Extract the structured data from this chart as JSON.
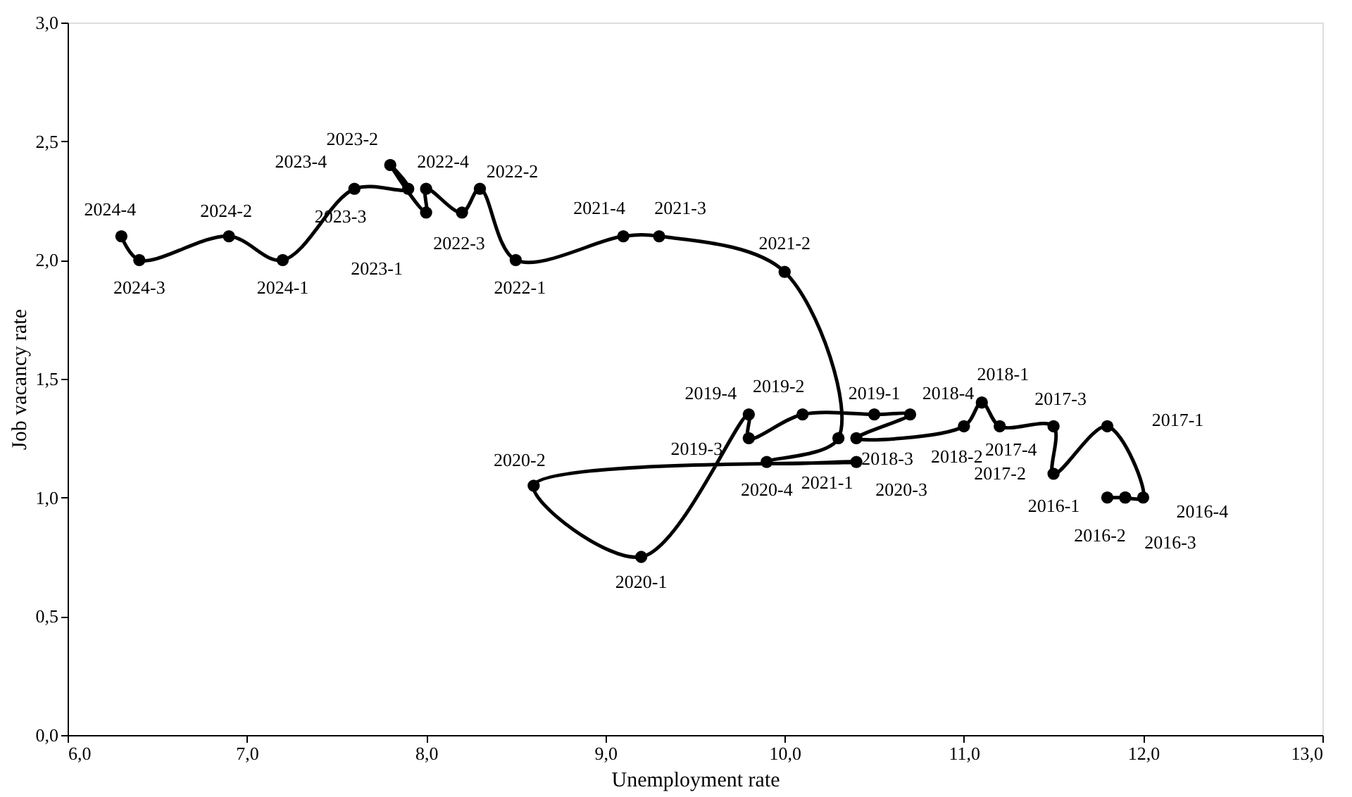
{
  "chart_data": {
    "type": "line",
    "xlabel": "Unemployment rate",
    "ylabel": "Job vacancy rate",
    "xlim": [
      6,
      13
    ],
    "ylim": [
      0,
      3
    ],
    "xticks": [
      {
        "value": 6,
        "label": "6,0"
      },
      {
        "value": 7,
        "label": "7,0"
      },
      {
        "value": 8,
        "label": "8,0"
      },
      {
        "value": 9,
        "label": "9,0"
      },
      {
        "value": 10,
        "label": "10,0"
      },
      {
        "value": 11,
        "label": "11,0"
      },
      {
        "value": 12,
        "label": "12,0"
      },
      {
        "value": 13,
        "label": "13,0"
      }
    ],
    "yticks": [
      {
        "value": 0,
        "label": "0,0"
      },
      {
        "value": 0.5,
        "label": "0,5"
      },
      {
        "value": 1,
        "label": "1,0"
      },
      {
        "value": 1.5,
        "label": "1,5"
      },
      {
        "value": 2,
        "label": "2,0"
      },
      {
        "value": 2.5,
        "label": "2,5"
      },
      {
        "value": 3,
        "label": "3,0"
      }
    ],
    "grid": false,
    "marker": "circle",
    "line_style": "solid",
    "series": [
      {
        "color": "#000000",
        "x": [
          11.8,
          11.9,
          11.9,
          12.0,
          11.8,
          11.5,
          11.5,
          11.2,
          11.1,
          11.0,
          10.4,
          10.7,
          10.5,
          10.1,
          9.8,
          9.8,
          9.2,
          8.6,
          10.4,
          9.9,
          10.3,
          10.0,
          9.3,
          9.1,
          8.5,
          8.3,
          8.2,
          8.0,
          8.0,
          7.8,
          7.9,
          7.6,
          7.2,
          6.9,
          6.4,
          6.3
        ],
        "values": [
          1.0,
          1.0,
          1.0,
          1.0,
          1.3,
          1.1,
          1.3,
          1.3,
          1.4,
          1.3,
          1.25,
          1.35,
          1.35,
          1.35,
          1.25,
          1.35,
          0.75,
          1.05,
          1.15,
          1.15,
          1.25,
          1.95,
          2.1,
          2.1,
          2.0,
          2.3,
          2.2,
          2.3,
          2.2,
          2.4,
          2.3,
          2.3,
          2.0,
          2.1,
          2.0,
          2.1
        ]
      }
    ],
    "annotations": [
      {
        "text": "2016-1",
        "x": 11.8,
        "y": 1.0
      },
      {
        "text": "2016-2",
        "x": 11.9,
        "y": 1.0
      },
      {
        "text": "2016-3",
        "x": 11.9,
        "y": 1.0
      },
      {
        "text": "2016-4",
        "x": 12.0,
        "y": 1.0
      },
      {
        "text": "2017-1",
        "x": 11.8,
        "y": 1.3
      },
      {
        "text": "2017-2",
        "x": 11.5,
        "y": 1.1
      },
      {
        "text": "2017-3",
        "x": 11.5,
        "y": 1.3
      },
      {
        "text": "2017-4",
        "x": 11.2,
        "y": 1.3
      },
      {
        "text": "2018-1",
        "x": 11.1,
        "y": 1.4
      },
      {
        "text": "2018-2",
        "x": 11.0,
        "y": 1.3
      },
      {
        "text": "2018-3",
        "x": 10.4,
        "y": 1.25
      },
      {
        "text": "2018-4",
        "x": 10.7,
        "y": 1.35
      },
      {
        "text": "2019-1",
        "x": 10.5,
        "y": 1.35
      },
      {
        "text": "2019-2",
        "x": 10.1,
        "y": 1.35
      },
      {
        "text": "2019-3",
        "x": 9.8,
        "y": 1.25
      },
      {
        "text": "2019-4",
        "x": 9.8,
        "y": 1.35
      },
      {
        "text": "2020-1",
        "x": 9.2,
        "y": 0.75
      },
      {
        "text": "2020-2",
        "x": 8.6,
        "y": 1.05
      },
      {
        "text": "2020-3",
        "x": 10.4,
        "y": 1.15
      },
      {
        "text": "2020-4",
        "x": 9.9,
        "y": 1.15
      },
      {
        "text": "2021-1",
        "x": 10.3,
        "y": 1.25
      },
      {
        "text": "2021-2",
        "x": 10.0,
        "y": 1.95
      },
      {
        "text": "2021-3",
        "x": 9.3,
        "y": 2.1
      },
      {
        "text": "2021-4",
        "x": 9.1,
        "y": 2.1
      },
      {
        "text": "2022-1",
        "x": 8.5,
        "y": 2.0
      },
      {
        "text": "2022-2",
        "x": 8.3,
        "y": 2.3
      },
      {
        "text": "2022-3",
        "x": 8.2,
        "y": 2.2
      },
      {
        "text": "2022-4",
        "x": 8.0,
        "y": 2.3
      },
      {
        "text": "2023-1",
        "x": 8.0,
        "y": 2.2
      },
      {
        "text": "2023-2",
        "x": 7.8,
        "y": 2.4
      },
      {
        "text": "2023-3",
        "x": 7.9,
        "y": 2.3
      },
      {
        "text": "2023-4",
        "x": 7.6,
        "y": 2.3
      },
      {
        "text": "2024-1",
        "x": 7.2,
        "y": 2.0
      },
      {
        "text": "2024-2",
        "x": 6.9,
        "y": 2.1
      },
      {
        "text": "2024-3",
        "x": 6.4,
        "y": 2.0
      },
      {
        "text": "2024-4",
        "x": 6.3,
        "y": 2.1
      }
    ]
  }
}
